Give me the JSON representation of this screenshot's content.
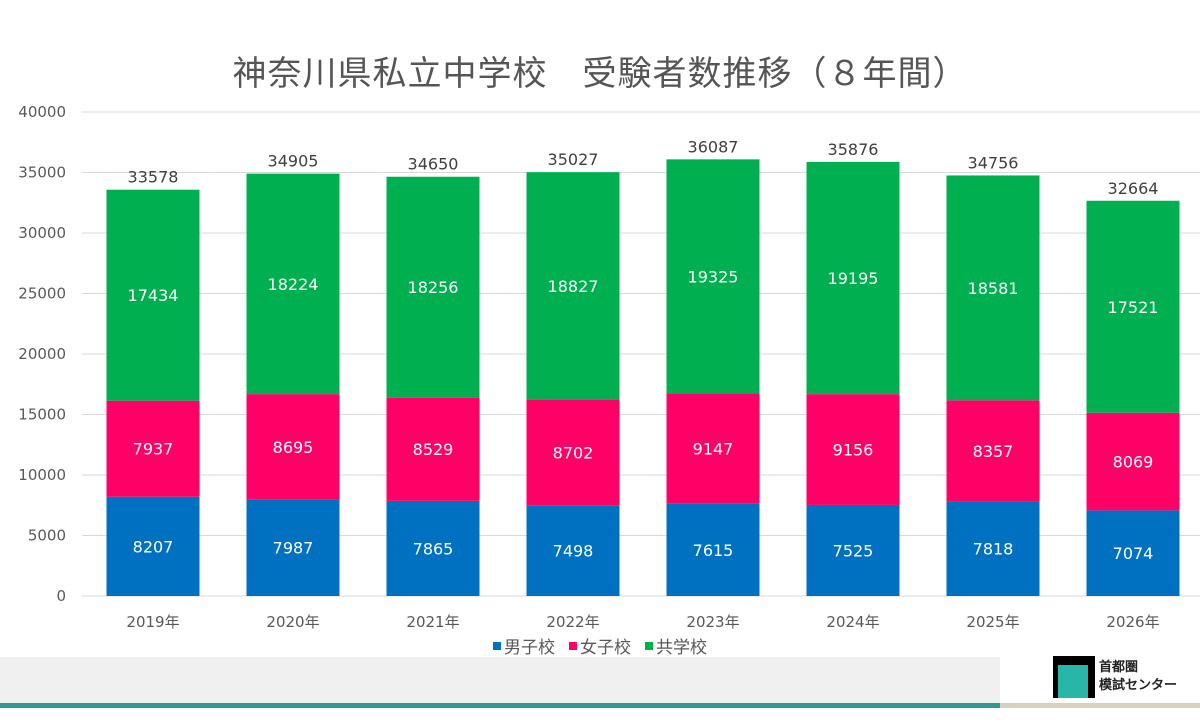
{
  "chart_data": {
    "type": "bar",
    "stacked": true,
    "title": "神奈川県私立中学校　受験者数推移（８年間）",
    "xlabel": "",
    "ylabel": "",
    "ylim": [
      0,
      40000
    ],
    "yticks": [
      0,
      5000,
      10000,
      15000,
      20000,
      25000,
      30000,
      35000,
      40000
    ],
    "grid": true,
    "legend_position": "bottom",
    "categories": [
      "2019年",
      "2020年",
      "2021年",
      "2022年",
      "2023年",
      "2024年",
      "2025年",
      "2026年"
    ],
    "series": [
      {
        "name": "男子校",
        "color": "#0070c0",
        "values": [
          8207,
          7987,
          7865,
          7498,
          7615,
          7525,
          7818,
          7074
        ]
      },
      {
        "name": "女子校",
        "color": "#ff0066",
        "values": [
          7937,
          8695,
          8529,
          8702,
          9147,
          9156,
          8357,
          8069
        ]
      },
      {
        "name": "共学校",
        "color": "#00b050",
        "values": [
          17434,
          18224,
          18256,
          18827,
          19325,
          19195,
          18581,
          17521
        ]
      }
    ],
    "totals": [
      33578,
      34905,
      34650,
      35027,
      36087,
      35876,
      34756,
      32664
    ]
  },
  "footer": {
    "logo_line1": "首都圏",
    "logo_line2": "模試センター"
  }
}
